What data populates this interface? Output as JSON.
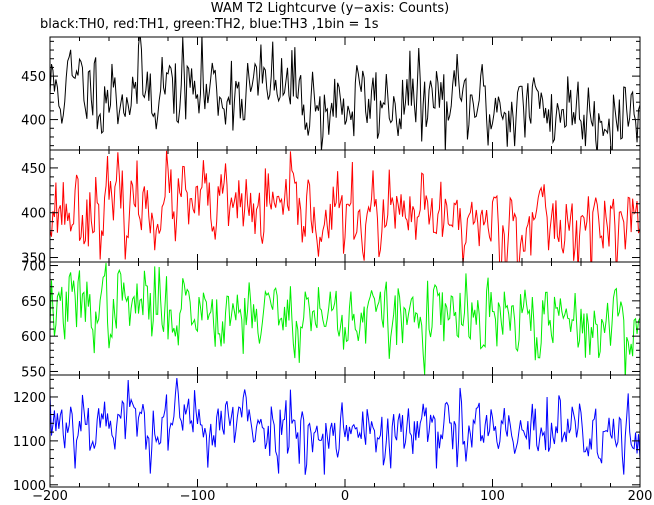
{
  "chart_data": {
    "type": "line",
    "title": "WAM T2 Lightcurve (y−axis: Counts)",
    "subtitle": "black:TH0, red:TH1, green:TH2, blue:TH3 ,1bin = 1s",
    "x_range": [
      -200,
      200
    ],
    "x_ticks": [
      -200,
      -100,
      0,
      100,
      200
    ],
    "x_tick_labels": [
      "−200",
      "−100",
      "0",
      "100",
      "200"
    ],
    "bin_seconds": 1,
    "panels": [
      {
        "series_name": "TH0",
        "color": "#000000",
        "ylim": [
          365,
          495
        ],
        "y_ticks": [
          400,
          450
        ],
        "y_tick_labels": [
          "400",
          "450"
        ],
        "trend": [
          [
            -200,
            435
          ],
          [
            -175,
            440
          ],
          [
            -150,
            432
          ],
          [
            -125,
            440
          ],
          [
            -100,
            433
          ],
          [
            -50,
            438
          ],
          [
            -25,
            430
          ],
          [
            -20,
            412
          ],
          [
            0,
            418
          ],
          [
            50,
            422
          ],
          [
            100,
            415
          ],
          [
            150,
            412
          ],
          [
            200,
            408
          ]
        ],
        "noise": 24,
        "seed": 11
      },
      {
        "series_name": "TH1",
        "color": "#ff0000",
        "ylim": [
          345,
          470
        ],
        "y_ticks": [
          350,
          400,
          450
        ],
        "y_tick_labels": [
          "350",
          "400",
          "450"
        ],
        "trend": [
          [
            -200,
            405
          ],
          [
            -150,
            407
          ],
          [
            -120,
            412
          ],
          [
            -100,
            405
          ],
          [
            -50,
            402
          ],
          [
            0,
            395
          ],
          [
            50,
            392
          ],
          [
            100,
            390
          ],
          [
            150,
            388
          ],
          [
            200,
            385
          ]
        ],
        "noise": 22,
        "seed": 23
      },
      {
        "series_name": "TH2",
        "color": "#00ee00",
        "ylim": [
          545,
          705
        ],
        "y_ticks": [
          550,
          600,
          650,
          700
        ],
        "y_tick_labels": [
          "550",
          "600",
          "650",
          "700"
        ],
        "trend": [
          [
            -200,
            640
          ],
          [
            -150,
            645
          ],
          [
            -100,
            640
          ],
          [
            -50,
            635
          ],
          [
            0,
            628
          ],
          [
            50,
            625
          ],
          [
            100,
            622
          ],
          [
            150,
            618
          ],
          [
            200,
            615
          ]
        ],
        "noise": 26,
        "seed": 37
      },
      {
        "series_name": "TH3",
        "color": "#0000ff",
        "ylim": [
          995,
          1250
        ],
        "y_ticks": [
          1000,
          1100,
          1200
        ],
        "y_tick_labels": [
          "1000",
          "1100",
          "1200"
        ],
        "trend": [
          [
            -200,
            1150
          ],
          [
            -150,
            1148
          ],
          [
            -100,
            1142
          ],
          [
            -50,
            1135
          ],
          [
            0,
            1125
          ],
          [
            50,
            1118
          ],
          [
            100,
            1115
          ],
          [
            150,
            1112
          ],
          [
            200,
            1110
          ]
        ],
        "noise": 40,
        "seed": 53
      }
    ]
  }
}
